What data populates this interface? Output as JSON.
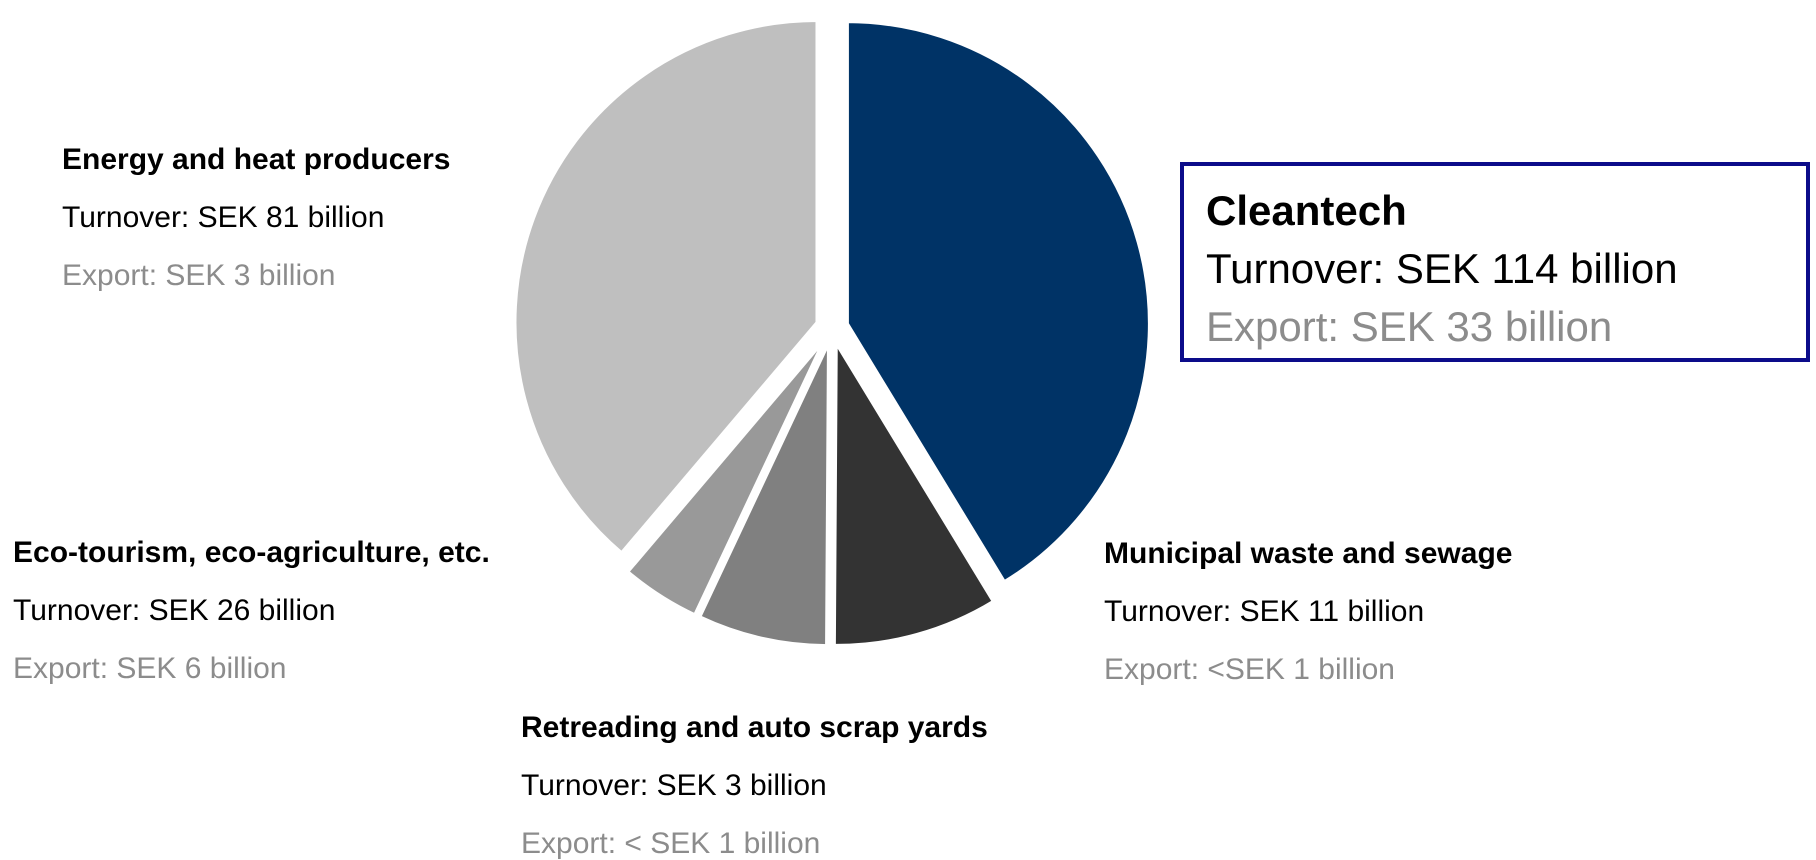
{
  "chart_data": {
    "type": "pie",
    "title": "",
    "order": "clockwise from top",
    "slices": [
      {
        "name": "Cleantech",
        "turnover": "Turnover: SEK 114 billion",
        "export": "Export: SEK 33 billion",
        "value": 114,
        "color": "#003366"
      },
      {
        "name": "Municipal waste and sewage",
        "turnover": "Turnover: SEK 11 billion",
        "export": "Export: <SEK 1 billion",
        "value": 11,
        "color": "#333333"
      },
      {
        "name": "Retreading and auto scrap yards",
        "turnover": "Turnover: SEK 3 billion",
        "export": "Export: < SEK 1 billion",
        "value": 3,
        "color": "#808080"
      },
      {
        "name": "Eco-tourism, eco-agriculture, etc.",
        "turnover": "Turnover: SEK 26 billion",
        "export": "Export: SEK 6 billion",
        "value": 26,
        "color": "#999999"
      },
      {
        "name": "Energy and heat producers",
        "turnover": "Turnover: SEK 81 billion",
        "export": "Export: SEK 3 billion",
        "value": 81,
        "color": "#bfbfbf"
      }
    ],
    "slice_sizes_percent": [
      41.3,
      8.8,
      6.9,
      4.2,
      38.8
    ],
    "export_text_color": "#8c8c8c",
    "highlight_border_color": "#0c0c8a"
  }
}
